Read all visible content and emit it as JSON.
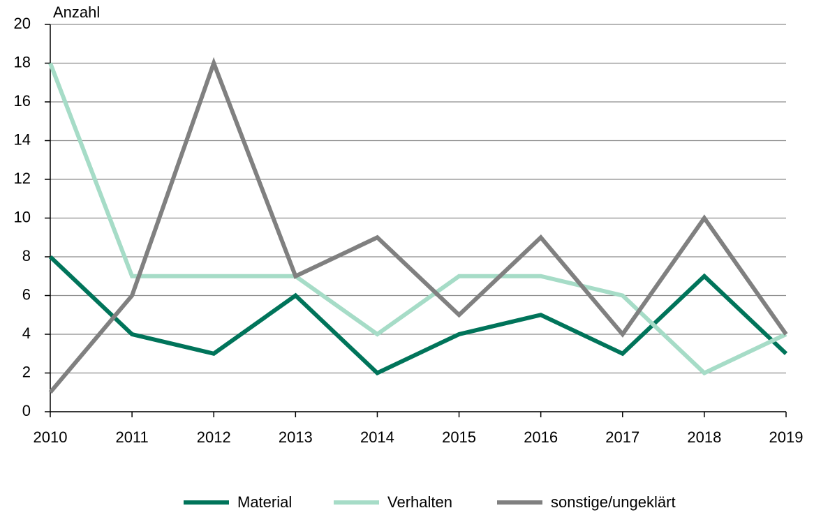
{
  "chart_data": {
    "type": "line",
    "y_label": "Anzahl",
    "x": [
      2010,
      2011,
      2012,
      2013,
      2014,
      2015,
      2016,
      2017,
      2018,
      2019
    ],
    "xlim": [
      2010,
      2019
    ],
    "xticks": [
      2010,
      2011,
      2012,
      2013,
      2014,
      2015,
      2016,
      2017,
      2018,
      2019
    ],
    "ylim": [
      0,
      20
    ],
    "yticks": [
      0,
      2,
      4,
      6,
      8,
      10,
      12,
      14,
      16,
      18,
      20
    ],
    "grid": true,
    "legend": "bottom",
    "series": [
      {
        "name": "Material",
        "color": "#00745a",
        "values": [
          8,
          4,
          3,
          6,
          2,
          4,
          5,
          3,
          7,
          3
        ]
      },
      {
        "name": "Verhalten",
        "color": "#a6dcc7",
        "values": [
          18,
          7,
          7,
          7,
          4,
          7,
          7,
          6,
          2,
          4
        ]
      },
      {
        "name": "sonstige/ungeklärt",
        "color": "#808080",
        "values": [
          1,
          6,
          18,
          7,
          9,
          5,
          9,
          4,
          10,
          4
        ]
      }
    ]
  }
}
